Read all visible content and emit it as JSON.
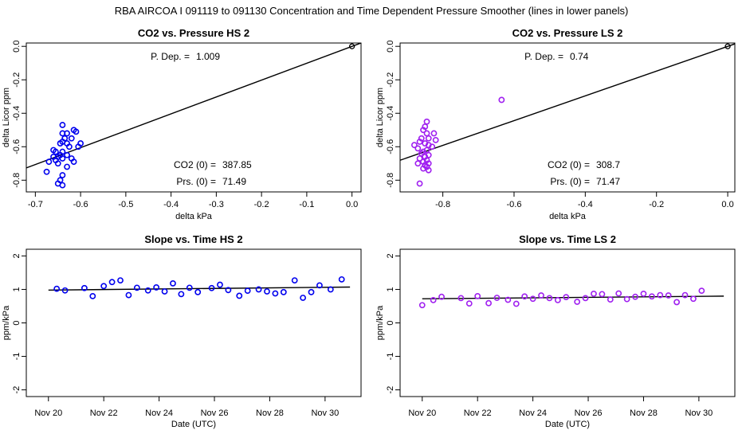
{
  "main_title": "RBA   AIRCOA I   091119 to 091130   Concentration and Time Dependent Pressure Smoother (lines in lower panels)",
  "colors": {
    "hs": "#0000ee",
    "ls": "#a020f0",
    "line": "#000000",
    "axis": "#000000"
  },
  "chart_data": [
    {
      "id": "co2-pressure-hs",
      "type": "scatter",
      "title": "CO2 vs. Pressure HS 2",
      "xlabel": "delta kPa",
      "ylabel": "delta Licor ppm",
      "xlim": [
        -0.72,
        0.02
      ],
      "ylim": [
        -0.87,
        0.02
      ],
      "xticks": [
        -0.7,
        -0.6,
        -0.5,
        -0.4,
        -0.3,
        -0.2,
        -0.1,
        0.0
      ],
      "xtick_labels": [
        "-0.7",
        "-0.6",
        "-0.5",
        "-0.4",
        "-0.3",
        "-0.2",
        "-0.1",
        "0.0"
      ],
      "yticks": [
        0.0,
        -0.2,
        -0.4,
        -0.6,
        -0.8
      ],
      "ytick_labels": [
        "0.0",
        "-0.2",
        "-0.4",
        "-0.6",
        "-0.8"
      ],
      "color": "#0000ee",
      "fit_line": {
        "slope": 1.009,
        "intercept": 0.0
      },
      "origin_point": [
        0.0,
        0.0
      ],
      "points": [
        [
          -0.64,
          -0.47
        ],
        [
          -0.615,
          -0.5
        ],
        [
          -0.61,
          -0.51
        ],
        [
          -0.64,
          -0.52
        ],
        [
          -0.63,
          -0.52
        ],
        [
          -0.635,
          -0.55
        ],
        [
          -0.62,
          -0.55
        ],
        [
          -0.64,
          -0.57
        ],
        [
          -0.645,
          -0.58
        ],
        [
          -0.63,
          -0.58
        ],
        [
          -0.6,
          -0.58
        ],
        [
          -0.605,
          -0.6
        ],
        [
          -0.625,
          -0.6
        ],
        [
          -0.66,
          -0.62
        ],
        [
          -0.655,
          -0.63
        ],
        [
          -0.64,
          -0.63
        ],
        [
          -0.645,
          -0.65
        ],
        [
          -0.63,
          -0.65
        ],
        [
          -0.66,
          -0.66
        ],
        [
          -0.65,
          -0.66
        ],
        [
          -0.64,
          -0.67
        ],
        [
          -0.62,
          -0.67
        ],
        [
          -0.615,
          -0.69
        ],
        [
          -0.655,
          -0.68
        ],
        [
          -0.67,
          -0.69
        ],
        [
          -0.65,
          -0.7
        ],
        [
          -0.63,
          -0.72
        ],
        [
          -0.675,
          -0.75
        ],
        [
          -0.64,
          -0.77
        ],
        [
          -0.645,
          -0.8
        ],
        [
          -0.65,
          -0.82
        ],
        [
          -0.64,
          -0.83
        ]
      ],
      "annotations": {
        "p_dep_label": "P. Dep. =",
        "p_dep_value": "1.009",
        "co2_label": "CO2 (0) =",
        "co2_value": "387.85",
        "prs_label": "Prs. (0) =",
        "prs_value": "71.49"
      }
    },
    {
      "id": "co2-pressure-ls",
      "type": "scatter",
      "title": "CO2 vs. Pressure LS 2",
      "xlabel": "delta kPa",
      "ylabel": "delta Licor ppm",
      "xlim": [
        -0.92,
        0.02
      ],
      "ylim": [
        -0.87,
        0.02
      ],
      "xticks": [
        -0.8,
        -0.6,
        -0.4,
        -0.2,
        0.0
      ],
      "xtick_labels": [
        "-0.8",
        "-0.6",
        "-0.4",
        "-0.2",
        "0.0"
      ],
      "yticks": [
        0.0,
        -0.2,
        -0.4,
        -0.6,
        -0.8
      ],
      "ytick_labels": [
        "0.0",
        "-0.2",
        "-0.4",
        "-0.6",
        "-0.8"
      ],
      "color": "#a020f0",
      "fit_line": {
        "slope": 0.74,
        "intercept": 0.0
      },
      "origin_point": [
        0.0,
        0.0
      ],
      "points": [
        [
          -0.635,
          -0.32
        ],
        [
          -0.845,
          -0.45
        ],
        [
          -0.85,
          -0.48
        ],
        [
          -0.855,
          -0.5
        ],
        [
          -0.845,
          -0.52
        ],
        [
          -0.825,
          -0.52
        ],
        [
          -0.86,
          -0.55
        ],
        [
          -0.84,
          -0.55
        ],
        [
          -0.82,
          -0.56
        ],
        [
          -0.865,
          -0.57
        ],
        [
          -0.85,
          -0.58
        ],
        [
          -0.84,
          -0.59
        ],
        [
          -0.88,
          -0.59
        ],
        [
          -0.83,
          -0.6
        ],
        [
          -0.87,
          -0.61
        ],
        [
          -0.845,
          -0.62
        ],
        [
          -0.855,
          -0.63
        ],
        [
          -0.86,
          -0.64
        ],
        [
          -0.84,
          -0.65
        ],
        [
          -0.85,
          -0.66
        ],
        [
          -0.865,
          -0.67
        ],
        [
          -0.845,
          -0.68
        ],
        [
          -0.855,
          -0.69
        ],
        [
          -0.84,
          -0.7
        ],
        [
          -0.87,
          -0.7
        ],
        [
          -0.85,
          -0.71
        ],
        [
          -0.845,
          -0.72
        ],
        [
          -0.855,
          -0.73
        ],
        [
          -0.84,
          -0.74
        ],
        [
          -0.865,
          -0.82
        ]
      ],
      "annotations": {
        "p_dep_label": "P. Dep. =",
        "p_dep_value": "0.74",
        "co2_label": "CO2 (0) =",
        "co2_value": "308.7",
        "prs_label": "Prs. (0) =",
        "prs_value": "71.47"
      }
    },
    {
      "id": "slope-time-hs",
      "type": "scatter",
      "title": "Slope vs. Time HS 2",
      "xlabel": "Date (UTC)",
      "ylabel": "ppm/kPa",
      "xlim": [
        19.2,
        31.3
      ],
      "ylim": [
        -2.2,
        2.2
      ],
      "xticks": [
        20,
        22,
        24,
        26,
        28,
        30
      ],
      "xtick_labels": [
        "Nov 20",
        "Nov 22",
        "Nov 24",
        "Nov 26",
        "Nov 28",
        "Nov 30"
      ],
      "yticks": [
        2,
        1,
        0,
        -1,
        -2
      ],
      "ytick_labels": [
        "2",
        "1",
        "0",
        "-1",
        "-2"
      ],
      "color": "#0000ee",
      "line": [
        [
          20.0,
          0.98
        ],
        [
          30.9,
          1.07
        ]
      ],
      "points": [
        [
          20.3,
          1.02
        ],
        [
          20.6,
          0.97
        ],
        [
          21.3,
          1.04
        ],
        [
          21.6,
          0.8
        ],
        [
          22.0,
          1.1
        ],
        [
          22.3,
          1.22
        ],
        [
          22.6,
          1.27
        ],
        [
          22.9,
          0.83
        ],
        [
          23.2,
          1.05
        ],
        [
          23.6,
          0.97
        ],
        [
          23.9,
          1.06
        ],
        [
          24.2,
          0.94
        ],
        [
          24.5,
          1.18
        ],
        [
          24.8,
          0.86
        ],
        [
          25.1,
          1.05
        ],
        [
          25.4,
          0.92
        ],
        [
          25.9,
          1.04
        ],
        [
          26.2,
          1.14
        ],
        [
          26.5,
          0.98
        ],
        [
          26.9,
          0.81
        ],
        [
          27.2,
          0.96
        ],
        [
          27.6,
          1.0
        ],
        [
          27.9,
          0.94
        ],
        [
          28.2,
          0.88
        ],
        [
          28.5,
          0.92
        ],
        [
          28.9,
          1.27
        ],
        [
          29.2,
          0.75
        ],
        [
          29.5,
          0.92
        ],
        [
          29.8,
          1.12
        ],
        [
          30.2,
          1.0
        ],
        [
          30.6,
          1.3
        ]
      ]
    },
    {
      "id": "slope-time-ls",
      "type": "scatter",
      "title": "Slope vs. Time LS 2",
      "xlabel": "Date (UTC)",
      "ylabel": "ppm/kPa",
      "xlim": [
        19.2,
        31.3
      ],
      "ylim": [
        -2.2,
        2.2
      ],
      "xticks": [
        20,
        22,
        24,
        26,
        28,
        30
      ],
      "xtick_labels": [
        "Nov 20",
        "Nov 22",
        "Nov 24",
        "Nov 26",
        "Nov 28",
        "Nov 30"
      ],
      "yticks": [
        2,
        1,
        0,
        -1,
        -2
      ],
      "ytick_labels": [
        "2",
        "1",
        "0",
        "-1",
        "-2"
      ],
      "color": "#a020f0",
      "line": [
        [
          20.0,
          0.72
        ],
        [
          30.9,
          0.8
        ]
      ],
      "points": [
        [
          20.0,
          0.53
        ],
        [
          20.4,
          0.68
        ],
        [
          20.7,
          0.78
        ],
        [
          21.4,
          0.74
        ],
        [
          21.7,
          0.58
        ],
        [
          22.0,
          0.8
        ],
        [
          22.4,
          0.59
        ],
        [
          22.7,
          0.75
        ],
        [
          23.1,
          0.69
        ],
        [
          23.4,
          0.57
        ],
        [
          23.7,
          0.79
        ],
        [
          24.0,
          0.72
        ],
        [
          24.3,
          0.82
        ],
        [
          24.6,
          0.74
        ],
        [
          24.9,
          0.68
        ],
        [
          25.2,
          0.77
        ],
        [
          25.6,
          0.63
        ],
        [
          25.9,
          0.74
        ],
        [
          26.2,
          0.87
        ],
        [
          26.5,
          0.86
        ],
        [
          26.8,
          0.7
        ],
        [
          27.1,
          0.88
        ],
        [
          27.4,
          0.71
        ],
        [
          27.7,
          0.78
        ],
        [
          28.0,
          0.87
        ],
        [
          28.3,
          0.79
        ],
        [
          28.6,
          0.83
        ],
        [
          28.9,
          0.82
        ],
        [
          29.2,
          0.62
        ],
        [
          29.5,
          0.83
        ],
        [
          29.8,
          0.72
        ],
        [
          30.1,
          0.96
        ]
      ]
    }
  ]
}
